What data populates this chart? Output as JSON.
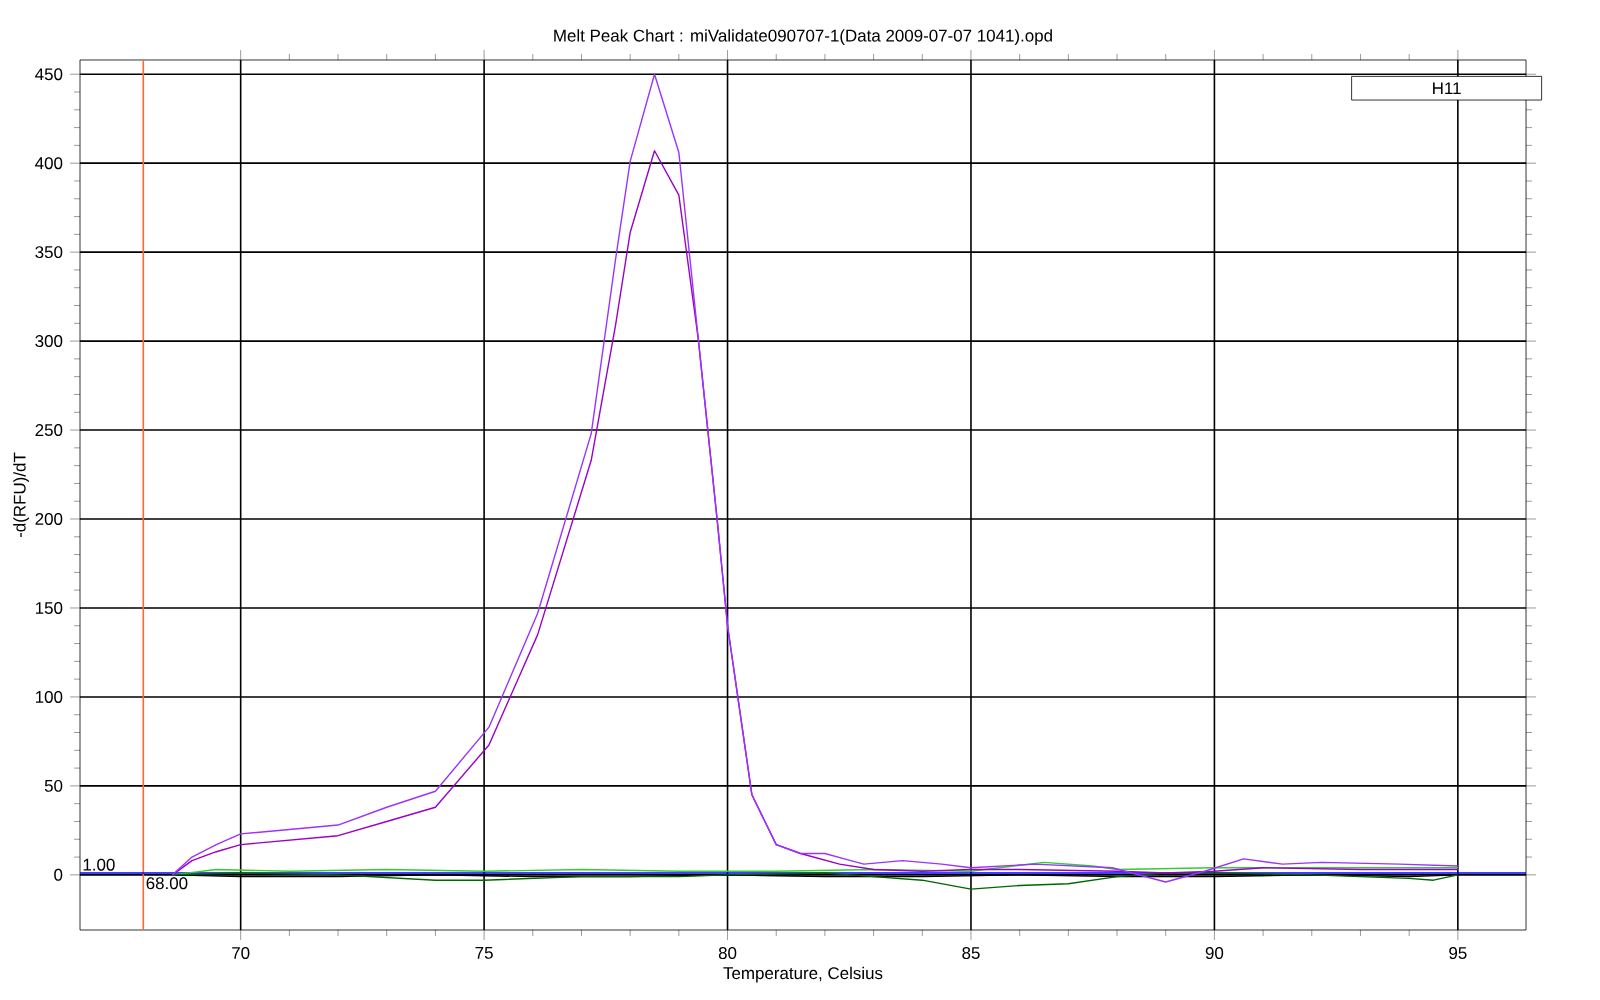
{
  "chart_data": {
    "type": "line",
    "title": "Melt Peak Chart : miValidate090707-1(Data 2009-07-07 1041).opd",
    "xlabel": "Temperature, Celsius",
    "ylabel": "-d(RFU)/dT",
    "legend_title": "H11",
    "xlim": [
      66.7,
      96.4
    ],
    "ylim": [
      -31,
      458
    ],
    "xticks": [
      70,
      75,
      80,
      85,
      90,
      95
    ],
    "yticks": [
      0,
      50,
      100,
      150,
      200,
      250,
      300,
      350,
      400,
      450
    ],
    "grid": true,
    "marker": "none",
    "line_style": "solid",
    "ref_lines": [
      {
        "axis": "x",
        "value": 68,
        "label": "68.00",
        "color": "#ff6633"
      },
      {
        "axis": "y",
        "value": 1,
        "label": "1.00",
        "color": "#0000ff"
      }
    ],
    "series": [
      {
        "color": "#000000",
        "x": [
          68.6,
          70,
          72,
          74,
          76,
          78,
          80,
          82,
          84,
          86,
          88,
          90,
          92,
          94,
          95
        ],
        "values": [
          0,
          -1,
          -1,
          0,
          -1,
          -1,
          0,
          -1,
          -1,
          0,
          -1,
          -1,
          0,
          -1,
          0
        ]
      },
      {
        "color": "#33cc33",
        "x": [
          68.6,
          69.5,
          71,
          73,
          75,
          77,
          79,
          81,
          83,
          85,
          86.5,
          87.5,
          88,
          90,
          92,
          94,
          95
        ],
        "values": [
          0,
          3,
          2,
          3,
          2,
          3,
          2,
          2,
          3,
          2,
          7,
          5,
          3,
          4,
          4,
          4,
          4
        ]
      },
      {
        "color": "#006600",
        "x": [
          68.6,
          70,
          72,
          74,
          75,
          77,
          79,
          80,
          82,
          83,
          84,
          85,
          86,
          87,
          88,
          89,
          90,
          92,
          94,
          94.5,
          95
        ],
        "values": [
          0,
          1,
          0,
          -3,
          -3,
          -1,
          -1,
          0,
          1,
          -1,
          -3,
          -8,
          -6,
          -5,
          -1,
          1,
          1,
          0,
          -2,
          -3,
          0
        ]
      },
      {
        "color": "#9900cc",
        "x": [
          68.6,
          69,
          69.5,
          70,
          72,
          73,
          74,
          75.1,
          76.1,
          77.2,
          77.7,
          78,
          78.5,
          79,
          79.4,
          79.8,
          80,
          80.3,
          80.5,
          81,
          81.5,
          82.3,
          83,
          84,
          85,
          86,
          88,
          89,
          90,
          91,
          93,
          95
        ],
        "values": [
          0,
          8,
          13,
          17,
          22,
          30,
          38,
          73,
          135,
          233,
          309,
          361,
          407,
          382,
          301,
          196,
          140,
          83,
          45,
          17,
          12,
          6,
          3,
          2,
          3,
          3,
          2,
          1,
          2,
          4,
          3,
          3
        ]
      },
      {
        "color": "#9933ff",
        "x": [
          68.6,
          69,
          69.5,
          70,
          72,
          73,
          74,
          75.1,
          76.1,
          77.2,
          77.7,
          78,
          78.5,
          79,
          79.4,
          79.8,
          80,
          80.3,
          80.5,
          81,
          81.5,
          82,
          82.4,
          82.8,
          83.6,
          84.4,
          85,
          86.3,
          87.9,
          89,
          89.8,
          90.6,
          91.4,
          92.2,
          93.8,
          95
        ],
        "values": [
          0,
          10,
          17,
          23,
          28,
          38,
          47,
          83,
          147,
          248,
          346,
          401,
          450,
          406,
          301,
          196,
          140,
          83,
          45,
          17,
          12,
          12,
          9,
          6,
          8,
          6,
          4,
          6,
          4,
          -4,
          2,
          9,
          6,
          7,
          6,
          5
        ]
      }
    ]
  }
}
